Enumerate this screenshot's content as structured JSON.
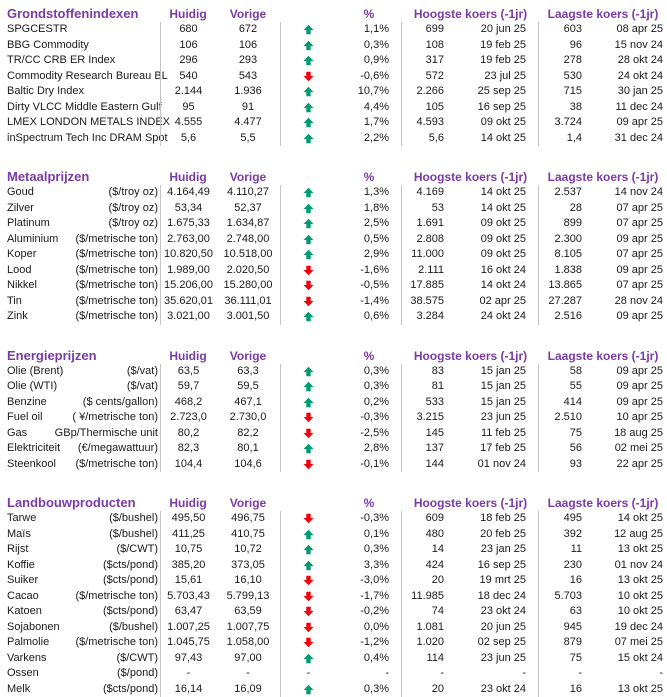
{
  "colors": {
    "header_purple": "#7A3BA6",
    "up_green": "#009B72",
    "down_red": "#F4000C",
    "divider_gray": "#C4C4C4",
    "text": "#1A1A1A"
  },
  "column_headers": {
    "huidig": "Huidig",
    "vorige": "Vorige",
    "pct": "%",
    "hoogste": "Hoogste koers (-1jr)",
    "laagste": "Laagste koers (-1jr)"
  },
  "sections": [
    {
      "title": "Grondstoffenindexen",
      "rows": [
        {
          "name": "SPGCESTR",
          "unit": "",
          "huidig": "680",
          "vorige": "672",
          "trend": "up",
          "pct": "1,1%",
          "high": "699",
          "high_date": "20 jun 25",
          "low": "603",
          "low_date": "08 apr 25"
        },
        {
          "name": "BBG Commodity",
          "unit": "",
          "huidig": "106",
          "vorige": "106",
          "trend": "up",
          "pct": "0,3%",
          "high": "108",
          "high_date": "19 feb 25",
          "low": "96",
          "low_date": "15 nov 24"
        },
        {
          "name": "TR/CC CRB ER Index",
          "unit": "",
          "huidig": "296",
          "vorige": "293",
          "trend": "up",
          "pct": "0,9%",
          "high": "317",
          "high_date": "19 feb 25",
          "low": "278",
          "low_date": "28 okt 24"
        },
        {
          "name": "Commodity Research Bureau BL",
          "unit": "",
          "huidig": "540",
          "vorige": "543",
          "trend": "down",
          "pct": "-0,6%",
          "high": "572",
          "high_date": "23 jul 25",
          "low": "530",
          "low_date": "24 okt 24"
        },
        {
          "name": "Baltic Dry Index",
          "unit": "",
          "huidig": "2.144",
          "vorige": "1.936",
          "trend": "up",
          "pct": "10,7%",
          "high": "2.266",
          "high_date": "25 sep 25",
          "low": "715",
          "low_date": "30 jan 25"
        },
        {
          "name": "Dirty VLCC Middle Eastern Gulf",
          "unit": "",
          "huidig": "95",
          "vorige": "91",
          "trend": "up",
          "pct": "4,4%",
          "high": "105",
          "high_date": "16 sep 25",
          "low": "38",
          "low_date": "11 dec 24"
        },
        {
          "name": "LMEX LONDON METALS INDEX",
          "unit": "",
          "huidig": "4.555",
          "vorige": "4.477",
          "trend": "up",
          "pct": "1,7%",
          "high": "4.593",
          "high_date": "09 okt 25",
          "low": "3.724",
          "low_date": "09 apr 25"
        },
        {
          "name": "inSpectrum Tech Inc DRAM Spot",
          "unit": "",
          "huidig": "5,6",
          "vorige": "5,5",
          "trend": "up",
          "pct": "2,2%",
          "high": "5,6",
          "high_date": "14 okt 25",
          "low": "1,4",
          "low_date": "31 dec 24"
        }
      ]
    },
    {
      "title": "Metaalprijzen",
      "rows": [
        {
          "name": "Goud",
          "unit": "($/troy oz)",
          "huidig": "4.164,49",
          "vorige": "4.110,27",
          "trend": "up",
          "pct": "1,3%",
          "high": "4.169",
          "high_date": "14 okt 25",
          "low": "2.537",
          "low_date": "14 nov 24"
        },
        {
          "name": "Zilver",
          "unit": "($/troy oz)",
          "huidig": "53,34",
          "vorige": "52,37",
          "trend": "up",
          "pct": "1,8%",
          "high": "53",
          "high_date": "14 okt 25",
          "low": "28",
          "low_date": "07 apr 25"
        },
        {
          "name": "Platinum",
          "unit": "($/troy oz)",
          "huidig": "1.675,33",
          "vorige": "1.634,87",
          "trend": "up",
          "pct": "2,5%",
          "high": "1.691",
          "high_date": "09 okt 25",
          "low": "899",
          "low_date": "07 apr 25"
        },
        {
          "name": "Aluminium",
          "unit": "($/metrische ton)",
          "huidig": "2.763,00",
          "vorige": "2.748,00",
          "trend": "up",
          "pct": "0,5%",
          "high": "2.808",
          "high_date": "09 okt 25",
          "low": "2.300",
          "low_date": "09 apr 25"
        },
        {
          "name": "Koper",
          "unit": "($/metrische ton)",
          "huidig": "10.820,50",
          "vorige": "10.518,00",
          "trend": "up",
          "pct": "2,9%",
          "high": "11.000",
          "high_date": "09 okt 25",
          "low": "8.105",
          "low_date": "07 apr 25"
        },
        {
          "name": "Lood",
          "unit": "($/metrische ton)",
          "huidig": "1.989,00",
          "vorige": "2.020,50",
          "trend": "down",
          "pct": "-1,6%",
          "high": "2.111",
          "high_date": "16 okt 24",
          "low": "1.838",
          "low_date": "09 apr 25"
        },
        {
          "name": "Nikkel",
          "unit": "($/metrische ton)",
          "huidig": "15.206,00",
          "vorige": "15.280,00",
          "trend": "down",
          "pct": "-0,5%",
          "high": "17.885",
          "high_date": "14 okt 24",
          "low": "13.865",
          "low_date": "07 apr 25"
        },
        {
          "name": "Tin",
          "unit": "($/metrische ton)",
          "huidig": "35.620,01",
          "vorige": "36.111,01",
          "trend": "down",
          "pct": "-1,4%",
          "high": "38.575",
          "high_date": "02 apr 25",
          "low": "27.287",
          "low_date": "28 nov 24"
        },
        {
          "name": "Zink",
          "unit": "($/metrische ton)",
          "huidig": "3.021,00",
          "vorige": "3.001,50",
          "trend": "up",
          "pct": "0,6%",
          "high": "3.284",
          "high_date": "24 okt 24",
          "low": "2.516",
          "low_date": "09 apr 25"
        }
      ]
    },
    {
      "title": "Energieprijzen",
      "rows": [
        {
          "name": "Olie (Brent)",
          "unit": "($/vat)",
          "huidig": "63,5",
          "vorige": "63,3",
          "trend": "up",
          "pct": "0,3%",
          "high": "83",
          "high_date": "15 jan 25",
          "low": "58",
          "low_date": "09 apr 25"
        },
        {
          "name": "Olie (WTI)",
          "unit": "($/vat)",
          "huidig": "59,7",
          "vorige": "59,5",
          "trend": "up",
          "pct": "0,3%",
          "high": "81",
          "high_date": "15 jan 25",
          "low": "55",
          "low_date": "09 apr 25"
        },
        {
          "name": "Benzine",
          "unit": "($ cents/gallon)",
          "huidig": "468,2",
          "vorige": "467,1",
          "trend": "up",
          "pct": "0,2%",
          "high": "533",
          "high_date": "15 jan 25",
          "low": "414",
          "low_date": "09 apr 25"
        },
        {
          "name": "Fuel oil",
          "unit": "( ¥/metrische ton)",
          "huidig": "2.723,0",
          "vorige": "2.730,0",
          "trend": "down",
          "pct": "-0,3%",
          "high": "3.215",
          "high_date": "23 jun 25",
          "low": "2.510",
          "low_date": "10 apr 25"
        },
        {
          "name": "Gas",
          "unit": "GBp/Thermische unit",
          "huidig": "80,2",
          "vorige": "82,2",
          "trend": "down",
          "pct": "-2,5%",
          "high": "145",
          "high_date": "11 feb 25",
          "low": "75",
          "low_date": "18 aug 25"
        },
        {
          "name": "Elektriciteit",
          "unit": "(€/megawattuur)",
          "huidig": "82,3",
          "vorige": "80,1",
          "trend": "up",
          "pct": "2,8%",
          "high": "137",
          "high_date": "17 feb 25",
          "low": "56",
          "low_date": "02 mei 25"
        },
        {
          "name": "Steenkool",
          "unit": "($/metrische ton)",
          "huidig": "104,4",
          "vorige": "104,6",
          "trend": "down",
          "pct": "-0,1%",
          "high": "144",
          "high_date": "01 nov 24",
          "low": "93",
          "low_date": "22 apr 25"
        }
      ]
    },
    {
      "title": "Landbouwproducten",
      "rows": [
        {
          "name": "Tarwe",
          "unit": "($/bushel)",
          "huidig": "495,50",
          "vorige": "496,75",
          "trend": "down",
          "pct": "-0,3%",
          "high": "609",
          "high_date": "18 feb 25",
          "low": "495",
          "low_date": "14 okt 25"
        },
        {
          "name": "Maïs",
          "unit": "($/bushel)",
          "huidig": "411,25",
          "vorige": "410,75",
          "trend": "up",
          "pct": "0,1%",
          "high": "480",
          "high_date": "20 feb 25",
          "low": "392",
          "low_date": "12 aug 25"
        },
        {
          "name": "Rijst",
          "unit": "($/CWT)",
          "huidig": "10,75",
          "vorige": "10,72",
          "trend": "up",
          "pct": "0,3%",
          "high": "14",
          "high_date": "23 jan 25",
          "low": "11",
          "low_date": "13 okt 25"
        },
        {
          "name": "Koffie",
          "unit": "($cts/pond)",
          "huidig": "385,20",
          "vorige": "373,05",
          "trend": "up",
          "pct": "3,3%",
          "high": "424",
          "high_date": "16 sep 25",
          "low": "230",
          "low_date": "01 nov 24"
        },
        {
          "name": "Suiker",
          "unit": "($cts/pond)",
          "huidig": "15,61",
          "vorige": "16,10",
          "trend": "down",
          "pct": "-3,0%",
          "high": "20",
          "high_date": "19 mrt 25",
          "low": "16",
          "low_date": "13 okt 25"
        },
        {
          "name": "Cacao",
          "unit": "($/metrische ton)",
          "huidig": "5.703,43",
          "vorige": "5.799,13",
          "trend": "down",
          "pct": "-1,7%",
          "high": "11.985",
          "high_date": "18 dec 24",
          "low": "5.703",
          "low_date": "10 okt 25"
        },
        {
          "name": "Katoen",
          "unit": "($cts/pond)",
          "huidig": "63,47",
          "vorige": "63,59",
          "trend": "down",
          "pct": "-0,2%",
          "high": "74",
          "high_date": "23 okt 24",
          "low": "63",
          "low_date": "10 okt 25"
        },
        {
          "name": "Sojabonen",
          "unit": "($/bushel)",
          "huidig": "1.007,25",
          "vorige": "1.007,75",
          "trend": "down",
          "pct": "0,0%",
          "high": "1.081",
          "high_date": "20 jun 25",
          "low": "945",
          "low_date": "19 dec 24"
        },
        {
          "name": "Palmolie",
          "unit": "($/metrische ton)",
          "huidig": "1.045,75",
          "vorige": "1.058,00",
          "trend": "down",
          "pct": "-1,2%",
          "high": "1.020",
          "high_date": "02 sep 25",
          "low": "879",
          "low_date": "07 mei 25"
        },
        {
          "name": "Varkens",
          "unit": "($/CWT)",
          "huidig": "97,43",
          "vorige": "97,00",
          "trend": "up",
          "pct": "0,4%",
          "high": "114",
          "high_date": "23 jun 25",
          "low": "75",
          "low_date": "15 okt 24"
        },
        {
          "name": "Ossen",
          "unit": "($/pond)",
          "huidig": "-",
          "vorige": "-",
          "trend": "-",
          "pct": "-",
          "high": "-",
          "high_date": "-",
          "low": "-",
          "low_date": "-"
        },
        {
          "name": "Melk",
          "unit": "($cts/pond)",
          "huidig": "16,14",
          "vorige": "16,09",
          "trend": "up",
          "pct": "0,3%",
          "high": "20",
          "high_date": "23 okt 24",
          "low": "16",
          "low_date": "13 okt 25"
        }
      ]
    }
  ]
}
